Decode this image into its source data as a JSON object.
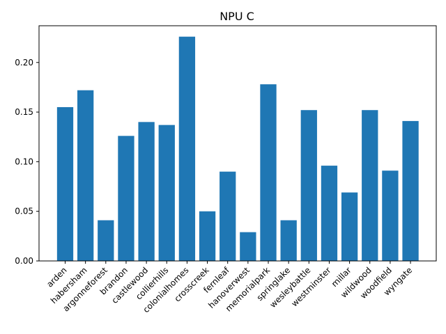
{
  "chart_data": {
    "type": "bar",
    "title": "NPU C",
    "xlabel": "",
    "ylabel": "",
    "categories": [
      "arden",
      "habersham",
      "argonneforest",
      "brandon",
      "castlewood",
      "collierhills",
      "colonialhomes",
      "crosscreek",
      "fernleaf",
      "hanoverwest",
      "memorialpark",
      "springlake",
      "wesleybattle",
      "westminster",
      "millar",
      "wildwood",
      "woodfield",
      "wyngate"
    ],
    "values": [
      0.155,
      0.172,
      0.041,
      0.126,
      0.14,
      0.137,
      0.226,
      0.05,
      0.09,
      0.029,
      0.178,
      0.041,
      0.152,
      0.096,
      0.069,
      0.152,
      0.091,
      0.141
    ],
    "ylim": [
      0,
      0.237
    ],
    "yticks": [
      "0.00",
      "0.05",
      "0.10",
      "0.15",
      "0.20"
    ],
    "grid": false,
    "bar_color": "#1f77b4"
  }
}
